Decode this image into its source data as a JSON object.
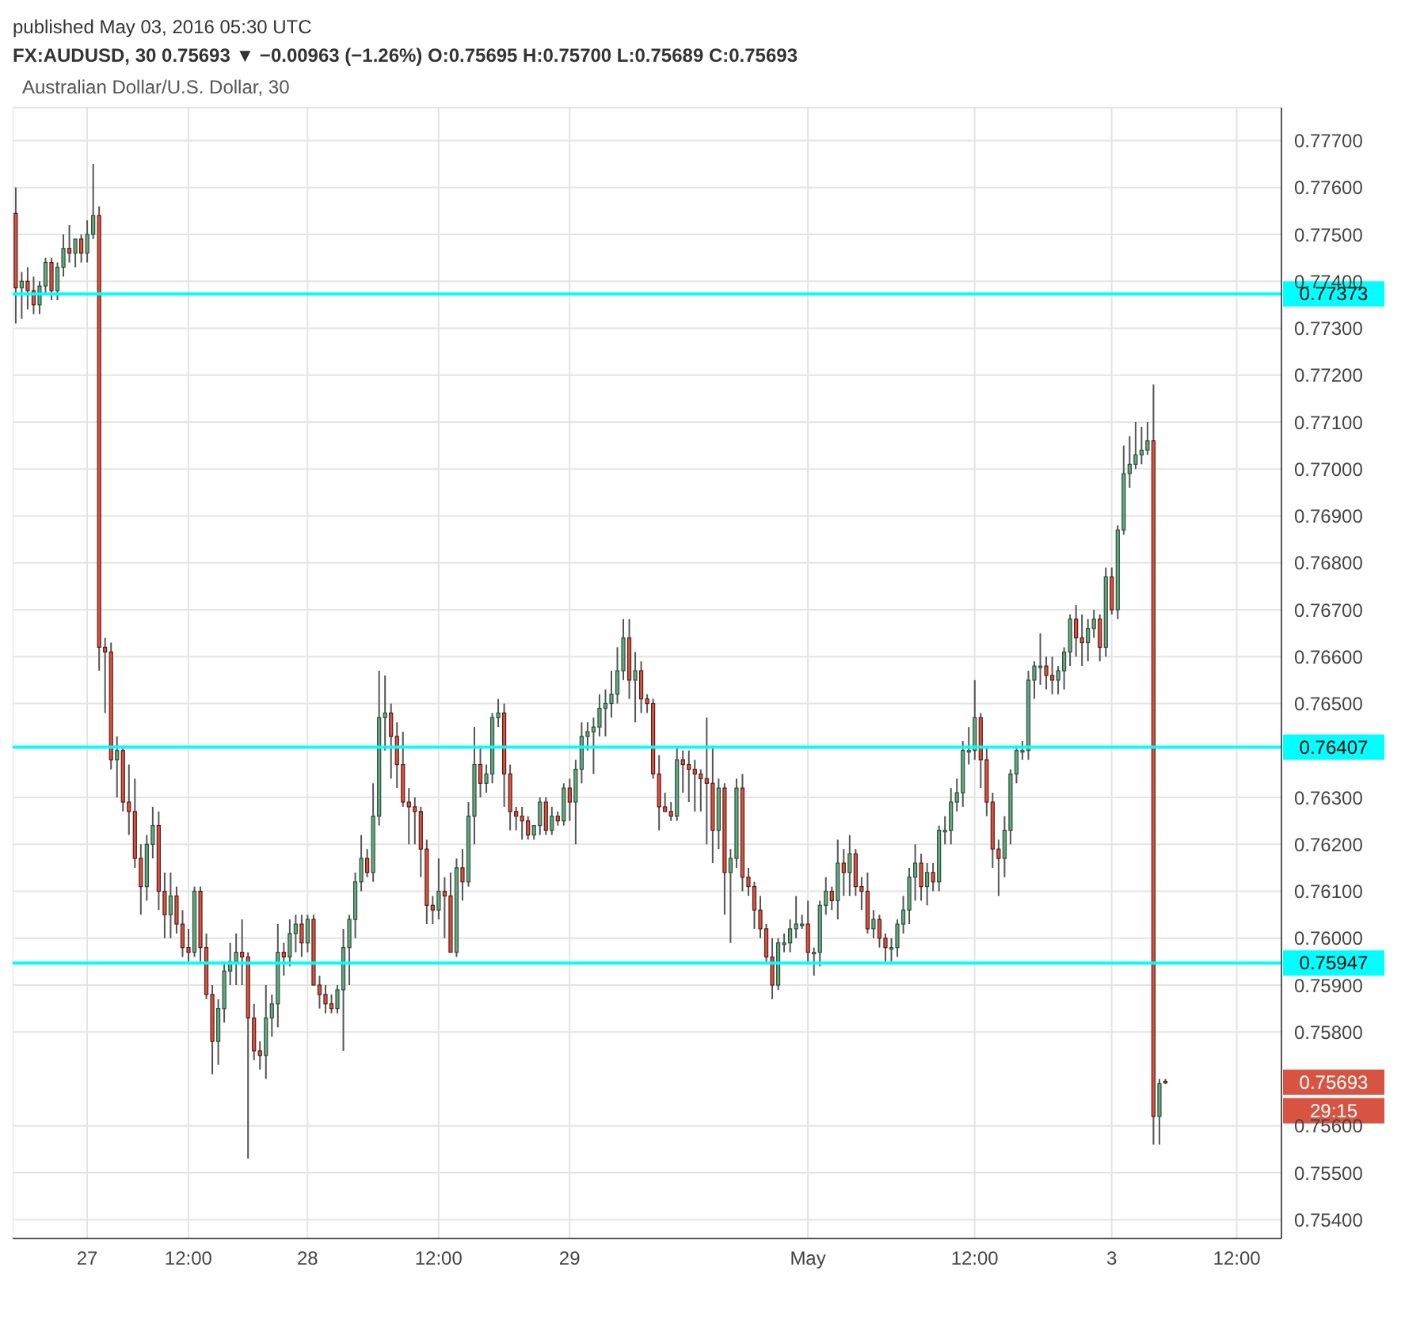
{
  "chart_data": {
    "type": "candlestick",
    "title": "FX:AUDUSD, 30  0.75693 ▼ −0.00963 (−1.26%)  O:0.75695 H:0.75700 L:0.75689 C:0.75693",
    "subtitle": "Australian Dollar/U.S. Dollar, 30",
    "annotations": [
      "published May 03, 2016 05:30 UTC",
      "0.75693",
      "29:15"
    ],
    "categories": [
      null,
      null,
      null,
      null,
      null,
      null,
      null,
      null,
      null,
      null,
      null,
      null,
      "27",
      null,
      null,
      null,
      null,
      null,
      null,
      null,
      null,
      null,
      null,
      null,
      null,
      null,
      null,
      null,
      null,
      "12:00",
      null,
      null,
      null,
      null,
      null,
      null,
      null,
      null,
      null,
      null,
      null,
      null,
      null,
      null,
      null,
      null,
      null,
      null,
      null,
      "28",
      null,
      null,
      null,
      null,
      null,
      null,
      null,
      null,
      null,
      null,
      null,
      null,
      null,
      null,
      null,
      null,
      null,
      null,
      null,
      null,
      null,
      "12:00",
      null,
      null,
      null,
      null,
      null,
      null,
      null,
      null,
      null,
      null,
      null,
      null,
      null,
      null,
      null,
      null,
      null,
      null,
      null,
      null,
      null,
      "29",
      null,
      null,
      null,
      null,
      null,
      null,
      null,
      null,
      null,
      null,
      null,
      null,
      null,
      null,
      null,
      null,
      null,
      null,
      null,
      null,
      null,
      null,
      null,
      null,
      null,
      null,
      null,
      null,
      null,
      null,
      null,
      null,
      null,
      null,
      null,
      null,
      null,
      null,
      null,
      "May",
      null,
      null,
      null,
      null,
      null,
      null,
      null,
      null,
      null,
      null,
      null,
      null,
      null,
      null,
      null,
      null,
      null,
      null,
      null,
      null,
      null,
      null,
      null,
      null,
      null,
      null,
      null,
      "12:00",
      null,
      null,
      null,
      null,
      null,
      null,
      null,
      null,
      null,
      null,
      null,
      null,
      null,
      null,
      null,
      null,
      null,
      null,
      null,
      null,
      null,
      null,
      "3",
      null,
      null,
      null,
      null,
      null,
      null,
      null,
      null,
      null,
      null,
      null,
      null,
      null,
      null,
      null,
      null,
      null,
      null,
      null,
      null,
      "12:00",
      null,
      null,
      null,
      null,
      null,
      null,
      null
    ],
    "ohlc": [
      [
        0.77545,
        0.776,
        0.7731,
        0.77386
      ],
      [
        0.77386,
        0.7742,
        0.7732,
        0.774
      ],
      [
        0.774,
        0.7743,
        0.7734,
        0.7738
      ],
      [
        0.7738,
        0.7741,
        0.7733,
        0.7735
      ],
      [
        0.7735,
        0.774,
        0.7733,
        0.7739
      ],
      [
        0.7739,
        0.7745,
        0.7737,
        0.7744
      ],
      [
        0.7744,
        0.7745,
        0.7736,
        0.7738
      ],
      [
        0.7738,
        0.7744,
        0.7736,
        0.7743
      ],
      [
        0.7743,
        0.775,
        0.7741,
        0.7747
      ],
      [
        0.7747,
        0.7752,
        0.7744,
        0.7746
      ],
      [
        0.7746,
        0.7749,
        0.7743,
        0.7749
      ],
      [
        0.7749,
        0.775,
        0.7744,
        0.7746
      ],
      [
        0.7746,
        0.7753,
        0.7744,
        0.775
      ],
      [
        0.775,
        0.7765,
        0.7749,
        0.7754
      ],
      [
        0.7754,
        0.7756,
        0.7657,
        0.7662
      ],
      [
        0.7662,
        0.7664,
        0.7648,
        0.7661
      ],
      [
        0.7661,
        0.7663,
        0.7636,
        0.7638
      ],
      [
        0.7638,
        0.7643,
        0.763,
        0.764
      ],
      [
        0.764,
        0.7641,
        0.7627,
        0.7629
      ],
      [
        0.7629,
        0.7637,
        0.7622,
        0.7627
      ],
      [
        0.7627,
        0.7634,
        0.7615,
        0.7617
      ],
      [
        0.7617,
        0.762,
        0.7605,
        0.7611
      ],
      [
        0.7611,
        0.7622,
        0.7608,
        0.762
      ],
      [
        0.762,
        0.7628,
        0.7617,
        0.7624
      ],
      [
        0.7624,
        0.7627,
        0.7606,
        0.761
      ],
      [
        0.761,
        0.7614,
        0.76,
        0.7605
      ],
      [
        0.7605,
        0.7614,
        0.76,
        0.7609
      ],
      [
        0.7609,
        0.7611,
        0.7601,
        0.7603
      ],
      [
        0.7603,
        0.7606,
        0.7596,
        0.7598
      ],
      [
        0.7598,
        0.7602,
        0.7595,
        0.7597
      ],
      [
        0.7597,
        0.7611,
        0.7596,
        0.761
      ],
      [
        0.761,
        0.7611,
        0.7595,
        0.7598
      ],
      [
        0.7598,
        0.7601,
        0.7587,
        0.7588
      ],
      [
        0.7588,
        0.759,
        0.7571,
        0.7578
      ],
      [
        0.7578,
        0.7587,
        0.7573,
        0.7585
      ],
      [
        0.7585,
        0.7595,
        0.7582,
        0.7593
      ],
      [
        0.7593,
        0.7599,
        0.759,
        0.7595
      ],
      [
        0.7595,
        0.7601,
        0.759,
        0.7597
      ],
      [
        0.7597,
        0.7604,
        0.759,
        0.7596
      ],
      [
        0.7596,
        0.7597,
        0.7553,
        0.7583
      ],
      [
        0.7583,
        0.7586,
        0.7574,
        0.7576
      ],
      [
        0.7576,
        0.7578,
        0.7572,
        0.7575
      ],
      [
        0.7575,
        0.759,
        0.757,
        0.7583
      ],
      [
        0.7583,
        0.7588,
        0.7579,
        0.7586
      ],
      [
        0.7586,
        0.7603,
        0.7581,
        0.7597
      ],
      [
        0.7597,
        0.7599,
        0.7592,
        0.7596
      ],
      [
        0.7596,
        0.7604,
        0.7594,
        0.7601
      ],
      [
        0.7601,
        0.7605,
        0.7597,
        0.7603
      ],
      [
        0.7603,
        0.7605,
        0.7596,
        0.7599
      ],
      [
        0.7599,
        0.7605,
        0.7597,
        0.7604
      ],
      [
        0.7604,
        0.7605,
        0.759,
        0.759
      ],
      [
        0.759,
        0.7592,
        0.7585,
        0.7588
      ],
      [
        0.7588,
        0.759,
        0.7584,
        0.7586
      ],
      [
        0.7586,
        0.7588,
        0.7584,
        0.7585
      ],
      [
        0.7585,
        0.759,
        0.7584,
        0.7589
      ],
      [
        0.7589,
        0.7602,
        0.7576,
        0.7598
      ],
      [
        0.7598,
        0.7605,
        0.759,
        0.7604
      ],
      [
        0.7604,
        0.7614,
        0.76,
        0.7612
      ],
      [
        0.7612,
        0.7622,
        0.761,
        0.7617
      ],
      [
        0.7617,
        0.7619,
        0.7613,
        0.7614
      ],
      [
        0.7614,
        0.7633,
        0.7612,
        0.7626
      ],
      [
        0.7626,
        0.7657,
        0.7624,
        0.7647
      ],
      [
        0.7647,
        0.7656,
        0.764,
        0.7648
      ],
      [
        0.7648,
        0.765,
        0.7634,
        0.7643
      ],
      [
        0.7643,
        0.7646,
        0.7632,
        0.7637
      ],
      [
        0.7637,
        0.7644,
        0.7628,
        0.7629
      ],
      [
        0.7629,
        0.7632,
        0.762,
        0.7628
      ],
      [
        0.7628,
        0.763,
        0.762,
        0.7627
      ],
      [
        0.7627,
        0.7628,
        0.7613,
        0.7619
      ],
      [
        0.7619,
        0.7621,
        0.7603,
        0.7607
      ],
      [
        0.7607,
        0.7609,
        0.7603,
        0.7606
      ],
      [
        0.7606,
        0.7617,
        0.7604,
        0.761
      ],
      [
        0.761,
        0.7613,
        0.76,
        0.7609
      ],
      [
        0.7609,
        0.7614,
        0.7597,
        0.7597
      ],
      [
        0.7597,
        0.7617,
        0.7596,
        0.7615
      ],
      [
        0.7615,
        0.7619,
        0.7608,
        0.7612
      ],
      [
        0.7612,
        0.7629,
        0.7611,
        0.7626
      ],
      [
        0.7626,
        0.7645,
        0.762,
        0.7637
      ],
      [
        0.7637,
        0.7641,
        0.763,
        0.7633
      ],
      [
        0.7633,
        0.7637,
        0.7631,
        0.7635
      ],
      [
        0.7635,
        0.7648,
        0.7633,
        0.7647
      ],
      [
        0.7647,
        0.7651,
        0.7645,
        0.7648
      ],
      [
        0.7648,
        0.765,
        0.7628,
        0.7635
      ],
      [
        0.7635,
        0.7637,
        0.7623,
        0.7627
      ],
      [
        0.7627,
        0.7628,
        0.7623,
        0.7626
      ],
      [
        0.7626,
        0.7628,
        0.7621,
        0.7625
      ],
      [
        0.7625,
        0.7626,
        0.7621,
        0.7622
      ],
      [
        0.7622,
        0.7624,
        0.7621,
        0.7624
      ],
      [
        0.7624,
        0.763,
        0.7622,
        0.7629
      ],
      [
        0.7629,
        0.763,
        0.7622,
        0.7623
      ],
      [
        0.7623,
        0.7628,
        0.7622,
        0.7626
      ],
      [
        0.7626,
        0.7627,
        0.7624,
        0.7625
      ],
      [
        0.7625,
        0.7633,
        0.7624,
        0.7632
      ],
      [
        0.7632,
        0.7634,
        0.7625,
        0.7629
      ],
      [
        0.7629,
        0.7638,
        0.762,
        0.7636
      ],
      [
        0.7636,
        0.7646,
        0.7633,
        0.7643
      ],
      [
        0.7643,
        0.7646,
        0.764,
        0.7644
      ],
      [
        0.7644,
        0.7647,
        0.7635,
        0.7645
      ],
      [
        0.7645,
        0.7652,
        0.7643,
        0.7649
      ],
      [
        0.7649,
        0.7653,
        0.7643,
        0.765
      ],
      [
        0.765,
        0.7657,
        0.7647,
        0.7652
      ],
      [
        0.7652,
        0.7662,
        0.765,
        0.7657
      ],
      [
        0.7657,
        0.7668,
        0.7655,
        0.7664
      ],
      [
        0.7664,
        0.7668,
        0.7651,
        0.7655
      ],
      [
        0.7655,
        0.7661,
        0.7646,
        0.7657
      ],
      [
        0.7657,
        0.7659,
        0.7648,
        0.7651
      ],
      [
        0.7651,
        0.7652,
        0.7648,
        0.765
      ],
      [
        0.765,
        0.7651,
        0.7634,
        0.7635
      ],
      [
        0.7635,
        0.7639,
        0.7623,
        0.7628
      ],
      [
        0.7628,
        0.7631,
        0.7627,
        0.7627
      ],
      [
        0.7627,
        0.7629,
        0.7625,
        0.7626
      ],
      [
        0.7626,
        0.7641,
        0.7625,
        0.7638
      ],
      [
        0.7638,
        0.764,
        0.7631,
        0.7637
      ],
      [
        0.7637,
        0.764,
        0.7629,
        0.7636
      ],
      [
        0.7636,
        0.7638,
        0.7627,
        0.7635
      ],
      [
        0.7635,
        0.7636,
        0.7627,
        0.7634
      ],
      [
        0.7634,
        0.7647,
        0.762,
        0.7633
      ],
      [
        0.7633,
        0.7641,
        0.7616,
        0.7623
      ],
      [
        0.7623,
        0.7634,
        0.7619,
        0.7632
      ],
      [
        0.7632,
        0.7633,
        0.7605,
        0.7614
      ],
      [
        0.7614,
        0.7619,
        0.7599,
        0.7617
      ],
      [
        0.7617,
        0.7634,
        0.7615,
        0.7632
      ],
      [
        0.7632,
        0.7635,
        0.761,
        0.7613
      ],
      [
        0.7613,
        0.7615,
        0.7609,
        0.7611
      ],
      [
        0.7611,
        0.7612,
        0.7602,
        0.7606
      ],
      [
        0.7606,
        0.7609,
        0.76,
        0.7602
      ],
      [
        0.7602,
        0.7603,
        0.7595,
        0.7596
      ],
      [
        0.7596,
        0.76,
        0.7587,
        0.759
      ],
      [
        0.759,
        0.76,
        0.7589,
        0.7599
      ],
      [
        0.7599,
        0.7601,
        0.7597,
        0.7599
      ],
      [
        0.7599,
        0.7604,
        0.7597,
        0.7602
      ],
      [
        0.7602,
        0.7609,
        0.76,
        0.7603
      ],
      [
        0.7603,
        0.7605,
        0.7602,
        0.7603
      ],
      [
        0.7603,
        0.7608,
        0.7595,
        0.7597
      ],
      [
        0.7597,
        0.7598,
        0.7592,
        0.7597
      ],
      [
        0.7597,
        0.7608,
        0.7594,
        0.7607
      ],
      [
        0.7607,
        0.7613,
        0.7605,
        0.761
      ],
      [
        0.761,
        0.7611,
        0.7606,
        0.7608
      ],
      [
        0.7608,
        0.7621,
        0.7604,
        0.7616
      ],
      [
        0.7616,
        0.7619,
        0.7609,
        0.7614
      ],
      [
        0.7614,
        0.7622,
        0.7609,
        0.7618
      ],
      [
        0.7618,
        0.7619,
        0.7609,
        0.7611
      ],
      [
        0.7611,
        0.7613,
        0.7606,
        0.761
      ],
      [
        0.761,
        0.7614,
        0.7601,
        0.7602
      ],
      [
        0.7602,
        0.7606,
        0.76,
        0.7604
      ],
      [
        0.7604,
        0.7605,
        0.7598,
        0.76
      ],
      [
        0.76,
        0.7601,
        0.7595,
        0.7598
      ],
      [
        0.7598,
        0.76,
        0.7595,
        0.7598
      ],
      [
        0.7598,
        0.7604,
        0.7596,
        0.7603
      ],
      [
        0.7603,
        0.7609,
        0.7601,
        0.7606
      ],
      [
        0.7606,
        0.7615,
        0.7603,
        0.7613
      ],
      [
        0.7613,
        0.762,
        0.7608,
        0.7616
      ],
      [
        0.7616,
        0.7618,
        0.7608,
        0.7611
      ],
      [
        0.7611,
        0.7616,
        0.7607,
        0.7614
      ],
      [
        0.7614,
        0.7616,
        0.761,
        0.7612
      ],
      [
        0.7612,
        0.7624,
        0.761,
        0.7623
      ],
      [
        0.7623,
        0.7626,
        0.762,
        0.7623
      ],
      [
        0.7623,
        0.7632,
        0.762,
        0.7629
      ],
      [
        0.7629,
        0.7634,
        0.7627,
        0.7631
      ],
      [
        0.7631,
        0.7642,
        0.7628,
        0.764
      ],
      [
        0.764,
        0.7645,
        0.7637,
        0.764
      ],
      [
        0.764,
        0.7655,
        0.7638,
        0.7647
      ],
      [
        0.7647,
        0.7648,
        0.7632,
        0.7638
      ],
      [
        0.7638,
        0.7641,
        0.7626,
        0.7629
      ],
      [
        0.7629,
        0.7631,
        0.7615,
        0.7619
      ],
      [
        0.7619,
        0.7621,
        0.7609,
        0.7617
      ],
      [
        0.7617,
        0.7626,
        0.7613,
        0.7623
      ],
      [
        0.7623,
        0.7636,
        0.762,
        0.7635
      ],
      [
        0.7635,
        0.7641,
        0.7633,
        0.764
      ],
      [
        0.764,
        0.7642,
        0.7638,
        0.764
      ],
      [
        0.764,
        0.7657,
        0.7638,
        0.7655
      ],
      [
        0.7655,
        0.7659,
        0.7651,
        0.7658
      ],
      [
        0.7658,
        0.7665,
        0.7654,
        0.7658
      ],
      [
        0.7658,
        0.766,
        0.7653,
        0.7656
      ],
      [
        0.7656,
        0.766,
        0.7652,
        0.7655
      ],
      [
        0.7655,
        0.7658,
        0.7652,
        0.7657
      ],
      [
        0.7657,
        0.7662,
        0.7653,
        0.7661
      ],
      [
        0.7661,
        0.7669,
        0.7658,
        0.7668
      ],
      [
        0.7668,
        0.7671,
        0.766,
        0.7664
      ],
      [
        0.7664,
        0.7669,
        0.7658,
        0.7663
      ],
      [
        0.7663,
        0.7668,
        0.7659,
        0.7666
      ],
      [
        0.7666,
        0.767,
        0.7664,
        0.7668
      ],
      [
        0.7668,
        0.7669,
        0.7659,
        0.7662
      ],
      [
        0.7662,
        0.7679,
        0.766,
        0.7677
      ],
      [
        0.7677,
        0.7679,
        0.7669,
        0.767
      ],
      [
        0.767,
        0.7688,
        0.7668,
        0.7687
      ],
      [
        0.7687,
        0.7705,
        0.7686,
        0.7699
      ],
      [
        0.7699,
        0.7707,
        0.7696,
        0.7701
      ],
      [
        0.7701,
        0.771,
        0.77,
        0.7703
      ],
      [
        0.7703,
        0.7709,
        0.7701,
        0.7704
      ],
      [
        0.7704,
        0.771,
        0.7703,
        0.7706
      ],
      [
        0.7706,
        0.7718,
        0.7556,
        0.7562
      ],
      [
        0.7562,
        0.757,
        0.7556,
        0.7569
      ],
      [
        0.75695,
        0.757,
        0.75689,
        0.75693
      ],
      null,
      null,
      null,
      null,
      null,
      null,
      null,
      null,
      null,
      null,
      null,
      null,
      null,
      null,
      null,
      null,
      null,
      null,
      null
    ],
    "ylim": [
      0.7536,
      0.7777
    ],
    "yticks": [
      {
        "value": 0.754,
        "label": "0.75400"
      },
      {
        "value": 0.755,
        "label": "0.75500"
      },
      {
        "value": 0.756,
        "label": "0.75600"
      },
      {
        "value": 0.758,
        "label": "0.75800"
      },
      {
        "value": 0.759,
        "label": "0.75900"
      },
      {
        "value": 0.76,
        "label": "0.76000"
      },
      {
        "value": 0.761,
        "label": "0.76100"
      },
      {
        "value": 0.762,
        "label": "0.76200"
      },
      {
        "value": 0.763,
        "label": "0.76300"
      },
      {
        "value": 0.765,
        "label": "0.76500"
      },
      {
        "value": 0.766,
        "label": "0.76600"
      },
      {
        "value": 0.767,
        "label": "0.76700"
      },
      {
        "value": 0.768,
        "label": "0.76800"
      },
      {
        "value": 0.769,
        "label": "0.76900"
      },
      {
        "value": 0.77,
        "label": "0.77000"
      },
      {
        "value": 0.771,
        "label": "0.77100"
      },
      {
        "value": 0.772,
        "label": "0.77200"
      },
      {
        "value": 0.773,
        "label": "0.77300"
      },
      {
        "value": 0.774,
        "label": "0.77400"
      },
      {
        "value": 0.775,
        "label": "0.77500"
      },
      {
        "value": 0.776,
        "label": "0.77600"
      },
      {
        "value": 0.777,
        "label": "0.77700"
      }
    ],
    "ref_lines": [
      {
        "axis": "y",
        "value": 0.77373,
        "label": "0.77373",
        "color": "#00ffff"
      },
      {
        "axis": "y",
        "value": 0.76407,
        "label": "0.76407",
        "color": "#00ffff"
      },
      {
        "axis": "y",
        "value": 0.75947,
        "label": "0.75947",
        "color": "#00ffff"
      }
    ],
    "grid": true,
    "legend": false
  }
}
